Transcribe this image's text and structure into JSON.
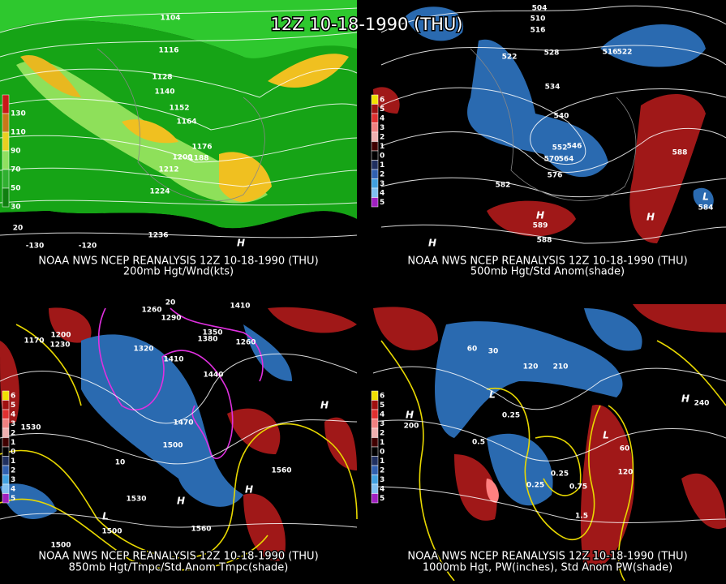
{
  "title": "12Z 10-18-1990 (THU)",
  "panels": [
    {
      "caption": "NOAA NWS NCEP REANALYSIS 12Z 10-18-1990 (THU)",
      "subtitle": "200mb Hgt/Wnd(kts)",
      "legend": [
        130,
        110,
        90,
        70,
        50,
        30
      ],
      "labels": [
        "1104",
        "1116",
        "1128",
        "1140",
        "1152",
        "1164",
        "1176",
        "1200",
        "1188",
        "1212",
        "1224",
        "1236",
        "-130",
        "-120",
        "20",
        "H"
      ]
    },
    {
      "caption": "NOAA NWS NCEP REANALYSIS 12Z 10-18-1990 (THU)",
      "subtitle": "500mb Hgt/Std Anom(shade)",
      "legend": [
        6,
        5,
        4,
        3,
        2,
        1,
        0,
        1,
        2,
        3,
        4,
        5
      ],
      "labels": [
        "504",
        "510",
        "516",
        "522",
        "528",
        "516",
        "522",
        "534",
        "540",
        "546",
        "552",
        "570",
        "564",
        "576",
        "582",
        "588",
        "588",
        "H",
        "589",
        "H",
        "L",
        "584",
        "H"
      ]
    },
    {
      "caption": "NOAA NWS NCEP REANALYSIS 12Z 10-18-1990 (THU)",
      "subtitle": "850mb Hgt/Tmpc/Std Anom Tmpc(shade)",
      "legend": [
        6,
        5,
        4,
        3,
        2,
        1,
        0,
        1,
        2,
        3,
        4,
        5
      ],
      "labels": [
        "1260",
        "1290",
        "1320",
        "1410",
        "1380",
        "1350",
        "1260",
        "1440",
        "1470",
        "1500",
        "1530",
        "1530",
        "1560",
        "1560",
        "1500",
        "1500",
        "1170",
        "1200",
        "1230",
        "1410",
        "H",
        "H",
        "H",
        "L",
        "20",
        "10"
      ]
    },
    {
      "caption": "NOAA NWS NCEP REANALYSIS 12Z 10-18-1990 (THU)",
      "subtitle": "1000mb Hgt, PW(inches), Std Anom PW(shade)",
      "legend": [
        6,
        5,
        4,
        3,
        2,
        1,
        0,
        1,
        2,
        3,
        4,
        5
      ],
      "labels": [
        "60",
        "30",
        "120",
        "210",
        "240",
        "H",
        "H",
        "200",
        "0.25",
        "0.5",
        "0.25",
        "0.25",
        "0.75",
        "1.5",
        "60",
        "120",
        "L",
        "L"
      ]
    }
  ]
}
